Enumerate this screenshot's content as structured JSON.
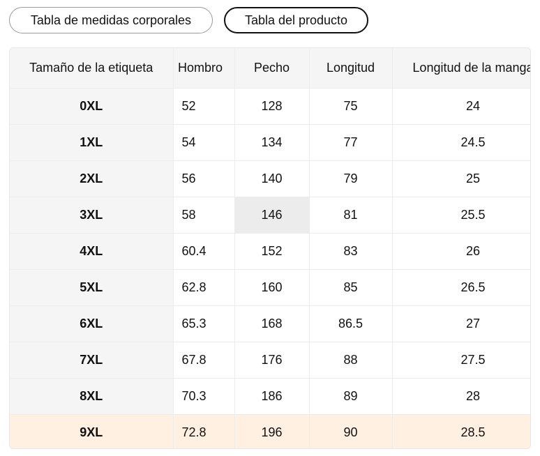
{
  "tabs": {
    "body_measurements": "Tabla de medidas corporales",
    "product_table": "Tabla del producto",
    "active": "product_table"
  },
  "table": {
    "headers": {
      "size": "Tamaño de la etiqueta",
      "shoulder": "Hombro",
      "chest": "Pecho",
      "length": "Longitud",
      "sleeve": "Longitud de la manga"
    },
    "rows": [
      {
        "size": "0XL",
        "shoulder": "52",
        "chest": "128",
        "length": "75",
        "sleeve": "24"
      },
      {
        "size": "1XL",
        "shoulder": "54",
        "chest": "134",
        "length": "77",
        "sleeve": "24.5"
      },
      {
        "size": "2XL",
        "shoulder": "56",
        "chest": "140",
        "length": "79",
        "sleeve": "25"
      },
      {
        "size": "3XL",
        "shoulder": "58",
        "chest": "146",
        "length": "81",
        "sleeve": "25.5"
      },
      {
        "size": "4XL",
        "shoulder": "60.4",
        "chest": "152",
        "length": "83",
        "sleeve": "26"
      },
      {
        "size": "5XL",
        "shoulder": "62.8",
        "chest": "160",
        "length": "85",
        "sleeve": "26.5"
      },
      {
        "size": "6XL",
        "shoulder": "65.3",
        "chest": "168",
        "length": "86.5",
        "sleeve": "27"
      },
      {
        "size": "7XL",
        "shoulder": "67.8",
        "chest": "176",
        "length": "88",
        "sleeve": "27.5"
      },
      {
        "size": "8XL",
        "shoulder": "70.3",
        "chest": "186",
        "length": "89",
        "sleeve": "28"
      },
      {
        "size": "9XL",
        "shoulder": "72.8",
        "chest": "196",
        "length": "90",
        "sleeve": "28.5"
      }
    ],
    "highlighted_row": "9XL",
    "highlight_color": "#fff0e1",
    "header_bg": "#f5f5f5"
  }
}
